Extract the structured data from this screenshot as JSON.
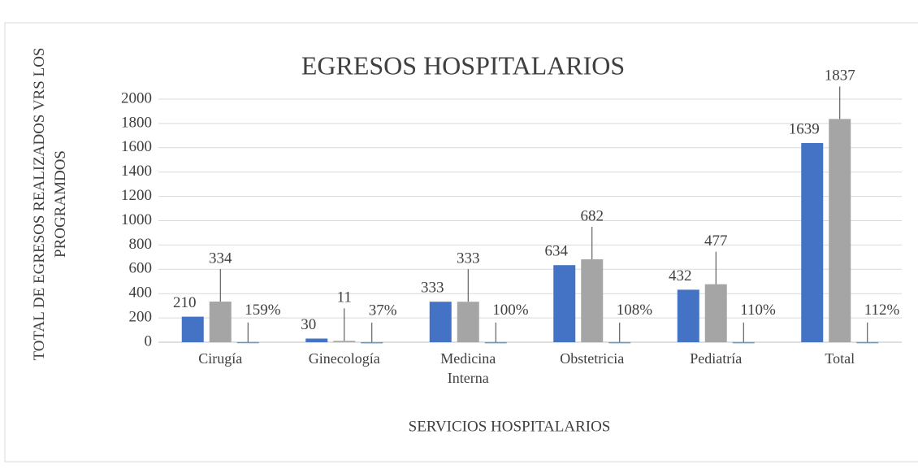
{
  "chart_data": {
    "type": "bar",
    "title": "EGRESOS HOSPITALARIOS",
    "x_label": "SERVICIOS HOSPITALARIOS",
    "y_label": "TOTAL DE EGRESOS REALIZADOS VRS LOS PROGRAMDOS",
    "categories": [
      "Cirugía",
      "Ginecología",
      "Medicina Interna",
      "Obstetricia",
      "Pediatría",
      "Total"
    ],
    "series": [
      {
        "color": "#4472c4",
        "values": [
          210,
          30,
          333,
          634,
          432,
          1639
        ]
      },
      {
        "color": "#a5a5a5",
        "values": [
          334,
          11,
          333,
          682,
          477,
          1837
        ]
      },
      {
        "color": "#5b9bd5",
        "values": [
          1.59,
          0.37,
          1.0,
          1.08,
          1.1,
          1.12
        ],
        "value_labels": [
          "159%",
          "37%",
          "100%",
          "108%",
          "110%",
          "112%"
        ]
      }
    ],
    "ylim": [
      0,
      2000
    ],
    "yticks": [
      0,
      200,
      400,
      600,
      800,
      1000,
      1200,
      1400,
      1600,
      1800,
      2000
    ],
    "grid": true
  }
}
